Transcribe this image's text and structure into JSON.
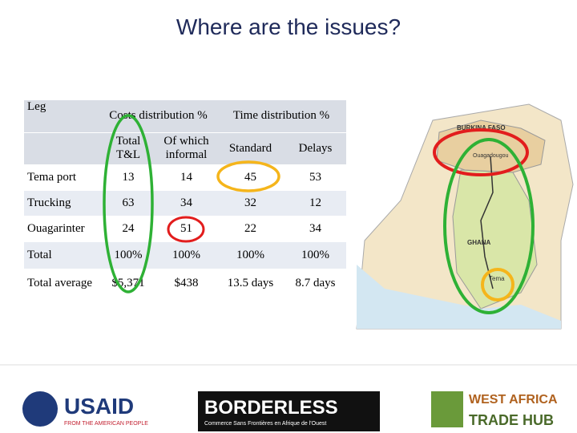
{
  "title": "Where are the issues?",
  "table": {
    "header": {
      "leg": "Leg",
      "costs": "Costs distribution %",
      "time": "Time distribution %",
      "sub": [
        "Total T&L",
        "Of which informal",
        "Standard",
        "Delays"
      ]
    },
    "rows": [
      [
        "Tema port",
        "13",
        "14",
        "45",
        "53"
      ],
      [
        "Trucking",
        "63",
        "34",
        "32",
        "12"
      ],
      [
        "Ouagarinter",
        "24",
        "51",
        "22",
        "34"
      ],
      [
        "Total",
        "100%",
        "100%",
        "100%",
        "100%"
      ],
      [
        "Total average",
        "$5,371",
        "$438",
        "13.5 days",
        "8.7 days"
      ]
    ]
  },
  "map": {
    "labels": [
      "BURKINA FASO",
      "Ouagadougou",
      "GHANA",
      "Tema"
    ]
  },
  "logos": {
    "usaid": "USAID",
    "usaid_tagline": "FROM THE AMERICAN PEOPLE",
    "borderless": "BORDERLESS",
    "borderless_tagline": "Commerce Sans Frontières en Afrique de l'Ouest",
    "hub_1": "WEST AFRICA",
    "hub_2": "TRADE HUB"
  }
}
